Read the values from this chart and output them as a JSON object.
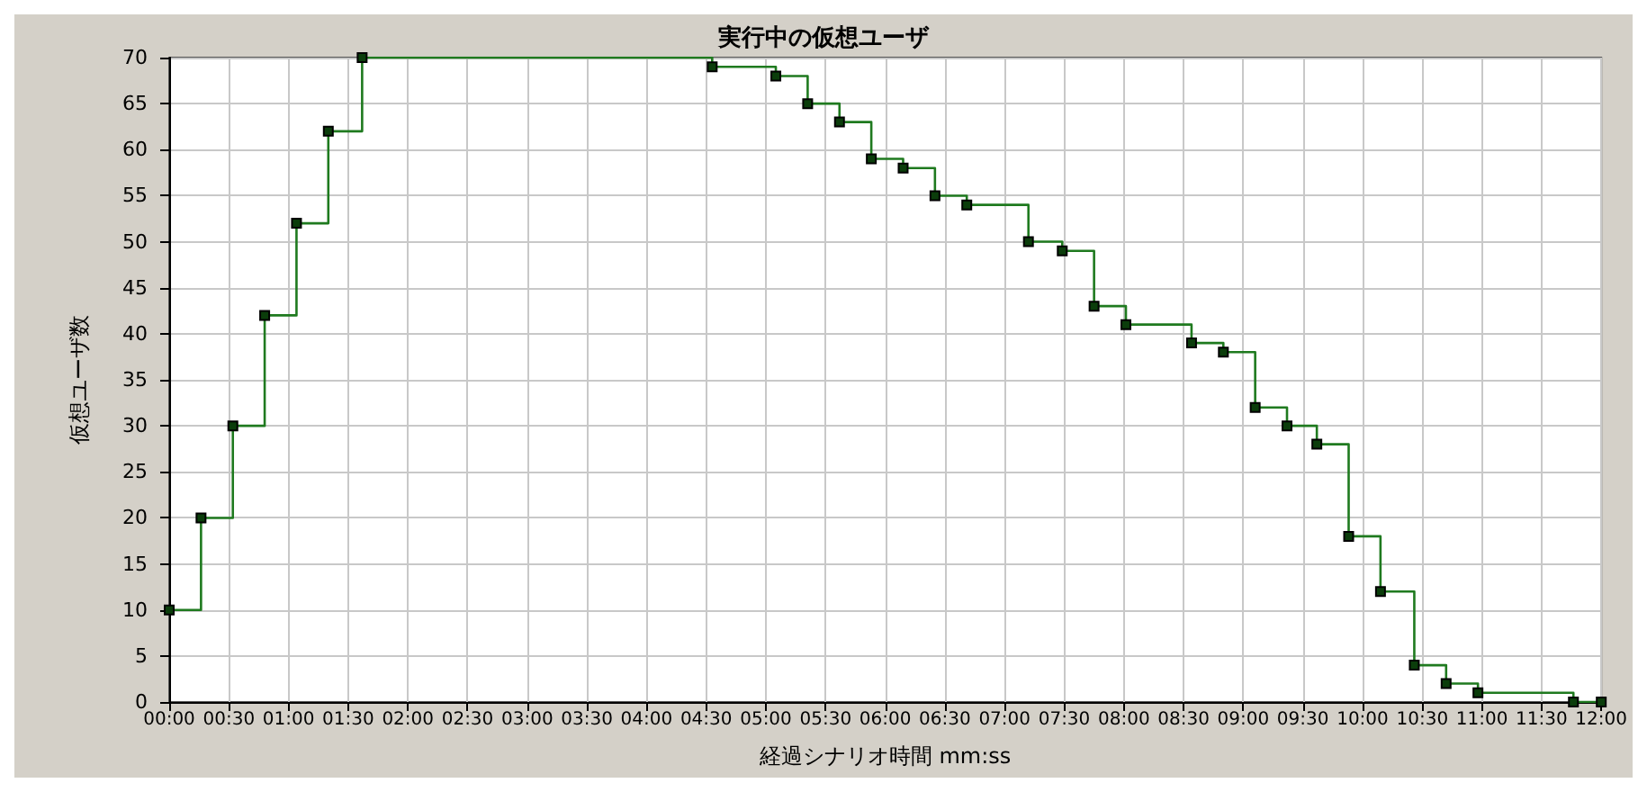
{
  "chart_data": {
    "type": "step",
    "title": "実行中の仮想ユーザ",
    "xlabel": "経過シナリオ時間 mm:ss",
    "ylabel": "仮想ユーザ数",
    "x": [
      0,
      16,
      32,
      48,
      64,
      80,
      97,
      273,
      305,
      321,
      337,
      353,
      369,
      385,
      401,
      432,
      449,
      465,
      481,
      514,
      530,
      546,
      562,
      577,
      593,
      609,
      626,
      642,
      658,
      706,
      720
    ],
    "values": [
      10,
      20,
      30,
      42,
      52,
      62,
      70,
      69,
      68,
      65,
      63,
      59,
      58,
      55,
      54,
      50,
      49,
      43,
      41,
      39,
      38,
      32,
      30,
      28,
      18,
      12,
      4,
      2,
      1,
      0,
      0
    ],
    "color": "#1f7a1f",
    "marker": "square",
    "grid": true,
    "xlim": [
      0,
      720
    ],
    "xticks": [
      {
        "value": 0,
        "label": "00:00"
      },
      {
        "value": 30,
        "label": "00:30"
      },
      {
        "value": 60,
        "label": "01:00"
      },
      {
        "value": 90,
        "label": "01:30"
      },
      {
        "value": 120,
        "label": "02:00"
      },
      {
        "value": 150,
        "label": "02:30"
      },
      {
        "value": 180,
        "label": "03:00"
      },
      {
        "value": 210,
        "label": "03:30"
      },
      {
        "value": 240,
        "label": "04:00"
      },
      {
        "value": 270,
        "label": "04:30"
      },
      {
        "value": 300,
        "label": "05:00"
      },
      {
        "value": 330,
        "label": "05:30"
      },
      {
        "value": 360,
        "label": "06:00"
      },
      {
        "value": 390,
        "label": "06:30"
      },
      {
        "value": 420,
        "label": "07:00"
      },
      {
        "value": 450,
        "label": "07:30"
      },
      {
        "value": 480,
        "label": "08:00"
      },
      {
        "value": 510,
        "label": "08:30"
      },
      {
        "value": 540,
        "label": "09:00"
      },
      {
        "value": 570,
        "label": "09:30"
      },
      {
        "value": 600,
        "label": "10:00"
      },
      {
        "value": 630,
        "label": "10:30"
      },
      {
        "value": 660,
        "label": "11:00"
      },
      {
        "value": 690,
        "label": "11:30"
      },
      {
        "value": 720,
        "label": "12:00"
      }
    ],
    "ylim": [
      0,
      70
    ],
    "yticks": [
      0,
      5,
      10,
      15,
      20,
      25,
      30,
      35,
      40,
      45,
      50,
      55,
      60,
      65,
      70
    ]
  }
}
